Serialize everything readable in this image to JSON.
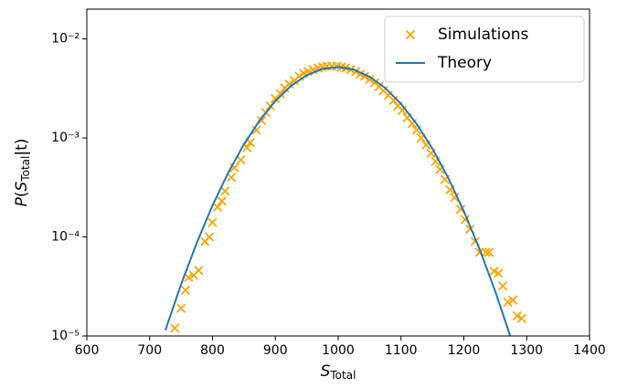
{
  "chart_data": {
    "type": "scatter",
    "x_label": [
      "S",
      "Total"
    ],
    "y_label": [
      "P",
      "(",
      "S",
      "Total",
      "|t)"
    ],
    "xlim": [
      600,
      1400
    ],
    "xticks": [
      600,
      700,
      800,
      900,
      1000,
      1100,
      1200,
      1300,
      1400
    ],
    "ylim": [
      1e-05,
      0.02
    ],
    "log_y": true,
    "yticks": [
      {
        "value": 1e-05,
        "label": "10⁻⁵"
      },
      {
        "value": 0.0001,
        "label": "10⁻⁴"
      },
      {
        "value": 0.001,
        "label": "10⁻³"
      },
      {
        "value": 0.01,
        "label": "10⁻²"
      }
    ],
    "legend": "upper right",
    "series": [
      {
        "name": "Simulations",
        "type": "scatter",
        "marker": "x",
        "color": "#ffa500",
        "x": [
          740,
          750,
          757,
          762,
          770,
          778,
          788,
          795,
          800,
          808,
          815,
          820,
          830,
          835,
          845,
          855,
          860,
          870,
          878,
          885,
          892,
          900,
          908,
          915,
          922,
          930,
          938,
          945,
          952,
          960,
          968,
          975,
          982,
          990,
          998,
          1005,
          1012,
          1020,
          1028,
          1035,
          1042,
          1050,
          1058,
          1065,
          1072,
          1080,
          1088,
          1095,
          1102,
          1110,
          1118,
          1125,
          1132,
          1140,
          1148,
          1155,
          1162,
          1170,
          1178,
          1185,
          1195,
          1202,
          1210,
          1218,
          1225,
          1235,
          1240,
          1248,
          1255,
          1262,
          1270,
          1278,
          1285,
          1292
        ],
        "values": [
          1.2e-05,
          1.9e-05,
          2.9e-05,
          3.9e-05,
          4.1e-05,
          4.6e-05,
          9e-05,
          0.0001,
          0.00014,
          0.0002,
          0.00023,
          0.00029,
          0.0004,
          0.0005,
          0.0006,
          0.0008,
          0.0009,
          0.0012,
          0.0015,
          0.0018,
          0.0021,
          0.0025,
          0.0028,
          0.0032,
          0.0035,
          0.0038,
          0.0042,
          0.0045,
          0.0047,
          0.0049,
          0.0051,
          0.0052,
          0.0053,
          0.0053,
          0.0053,
          0.0052,
          0.0051,
          0.0049,
          0.0047,
          0.0044,
          0.0042,
          0.0039,
          0.0036,
          0.0033,
          0.003,
          0.0027,
          0.0024,
          0.0021,
          0.0019,
          0.0016,
          0.0014,
          0.0012,
          0.001,
          0.00085,
          0.0007,
          0.00058,
          0.00048,
          0.00038,
          0.0003,
          0.00025,
          0.00019,
          0.00015,
          0.00012,
          9e-05,
          7e-05,
          7e-05,
          7e-05,
          4.5e-05,
          4.3e-05,
          3.2e-05,
          2.2e-05,
          2.3e-05,
          1.6e-05,
          1.5e-05
        ]
      },
      {
        "name": "Theory",
        "type": "line",
        "color": "#1f77b4",
        "x": [
          725,
          750,
          775,
          800,
          825,
          850,
          875,
          900,
          925,
          950,
          975,
          1000,
          1025,
          1050,
          1075,
          1100,
          1125,
          1150,
          1175,
          1200,
          1225,
          1250,
          1275
        ],
        "values": [
          1.14e-05,
          3.32e-05,
          8.74e-05,
          0.000208,
          0.000445,
          0.00086,
          0.0015,
          0.00236,
          0.00336,
          0.0043,
          0.00498,
          0.0052,
          0.0049,
          0.00416,
          0.00319,
          0.00221,
          0.00138,
          0.000779,
          0.000396,
          0.000182,
          7.53e-05,
          2.82e-05,
          9.5e-06
        ]
      }
    ]
  }
}
